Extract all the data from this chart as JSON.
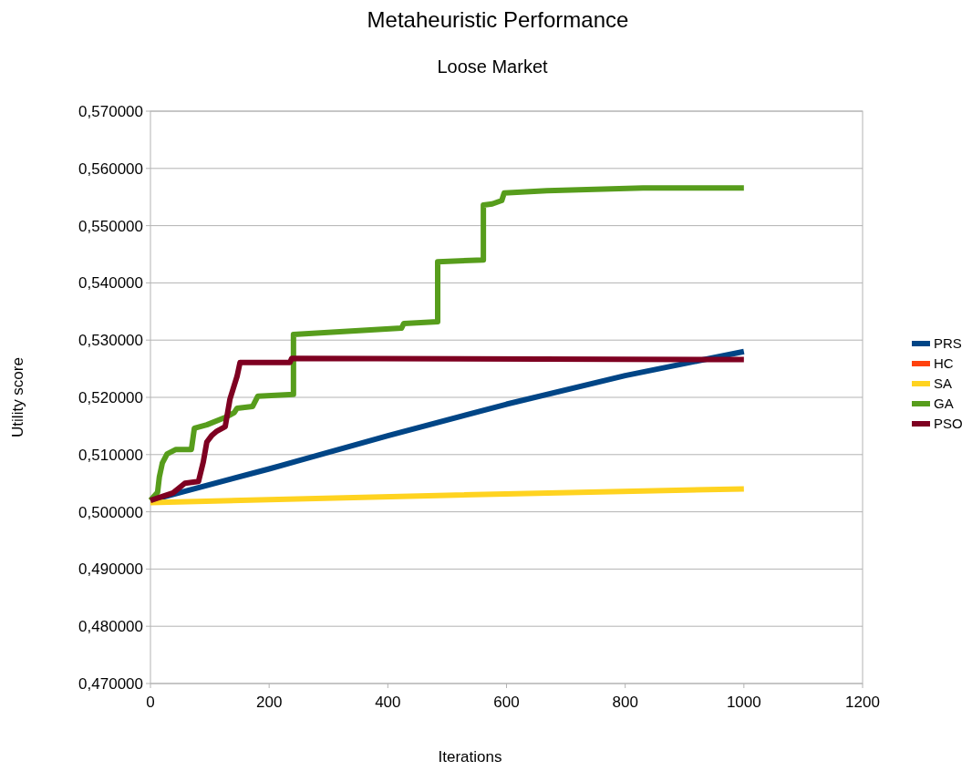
{
  "chart_data": {
    "type": "line",
    "title": "Metaheuristic Performance",
    "subtitle": "Loose Market",
    "xlabel": "Iterations",
    "ylabel": "Utility score",
    "xlim": [
      0,
      1200
    ],
    "xticks": [
      0,
      200,
      400,
      600,
      800,
      1000,
      1200
    ],
    "ylim": [
      0.47,
      0.57
    ],
    "yticks": [
      {
        "value": 0.47,
        "label": "0,470000"
      },
      {
        "value": 0.48,
        "label": "0,480000"
      },
      {
        "value": 0.49,
        "label": "0,490000"
      },
      {
        "value": 0.5,
        "label": "0,500000"
      },
      {
        "value": 0.51,
        "label": "0,510000"
      },
      {
        "value": 0.52,
        "label": "0,520000"
      },
      {
        "value": 0.53,
        "label": "0,530000"
      },
      {
        "value": 0.54,
        "label": "0,540000"
      },
      {
        "value": 0.55,
        "label": "0,550000"
      },
      {
        "value": 0.56,
        "label": "0,560000"
      },
      {
        "value": 0.57,
        "label": "0,570000"
      }
    ],
    "grid": "y",
    "legend": "right",
    "line_style": "solid",
    "series": [
      {
        "name": "PRS",
        "color": "#004586",
        "x": [
          0,
          200,
          400,
          600,
          800,
          1000
        ],
        "values": [
          0.502,
          0.5075,
          0.5133,
          0.5188,
          0.5238,
          0.528
        ]
      },
      {
        "name": "HC",
        "color": "#ff420e"
      },
      {
        "name": "SA",
        "color": "#ffd320",
        "x": [
          0,
          500,
          1000
        ],
        "values": [
          0.5016,
          0.5029,
          0.504
        ]
      },
      {
        "name": "GA",
        "color": "#579d1c",
        "x": [
          0,
          12,
          15,
          20,
          28,
          43,
          69,
          74,
          95,
          126,
          141,
          146,
          172,
          181,
          241,
          241,
          423,
          427,
          484,
          484,
          561,
          561,
          576,
          592,
          596,
          668,
          830,
          1000
        ],
        "values": [
          0.502,
          0.5034,
          0.5061,
          0.5085,
          0.5101,
          0.5109,
          0.5109,
          0.5146,
          0.5152,
          0.5165,
          0.5173,
          0.5181,
          0.5184,
          0.5202,
          0.5205,
          0.531,
          0.5321,
          0.5329,
          0.5332,
          0.5437,
          0.544,
          0.5536,
          0.5538,
          0.5544,
          0.5557,
          0.5561,
          0.5566,
          0.5566
        ]
      },
      {
        "name": "PSO",
        "color": "#7e0021",
        "x": [
          0,
          38,
          58,
          81,
          89,
          95,
          103,
          112,
          126,
          134,
          146,
          151,
          235,
          238,
          1000
        ],
        "values": [
          0.502,
          0.5033,
          0.505,
          0.5053,
          0.5087,
          0.5122,
          0.5133,
          0.5141,
          0.5149,
          0.5197,
          0.5237,
          0.5261,
          0.5261,
          0.5268,
          0.5266
        ]
      }
    ]
  }
}
